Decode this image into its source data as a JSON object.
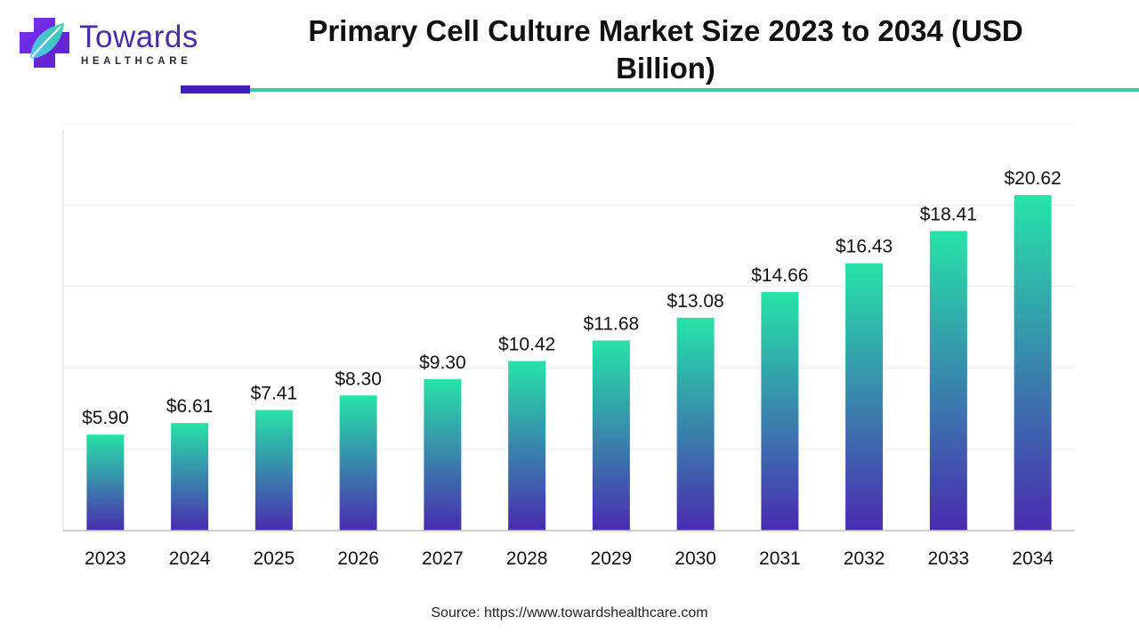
{
  "brand": {
    "name": "Towards",
    "tagline": "HEALTHCARE",
    "colors": {
      "purple": "#4a2ba8",
      "teal": "#2fd3a7"
    }
  },
  "footer": {
    "source": "Source: https://www.towardshealthcare.com"
  },
  "chart_data": {
    "type": "bar",
    "title": "Primary Cell Culture Market Size 2023 to 2034 (USD Billion)",
    "xlabel": "",
    "ylabel": "",
    "categories": [
      "2023",
      "2024",
      "2025",
      "2026",
      "2027",
      "2028",
      "2029",
      "2030",
      "2031",
      "2032",
      "2033",
      "2034"
    ],
    "values": [
      5.9,
      6.61,
      7.41,
      8.3,
      9.3,
      10.42,
      11.68,
      13.08,
      14.66,
      16.43,
      18.41,
      20.62
    ],
    "value_labels": [
      "$5.90",
      "$6.61",
      "$7.41",
      "$8.30",
      "$9.30",
      "$10.42",
      "$11.68",
      "$13.08",
      "$14.66",
      "$16.43",
      "$18.41",
      "$20.62"
    ],
    "ylim": [
      0,
      25
    ],
    "grid": true,
    "legend": "none",
    "bar_gradient": [
      "#27e3a8",
      "#4a2bb0"
    ]
  }
}
